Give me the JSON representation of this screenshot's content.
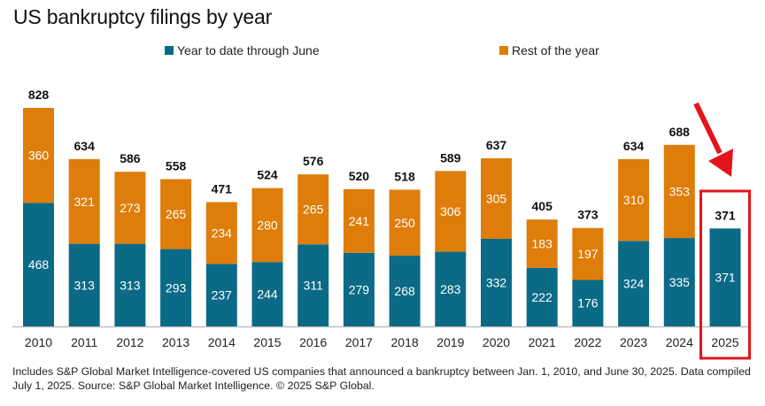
{
  "chart_data": {
    "type": "bar",
    "stacked": true,
    "title": "US bankruptcy filings by year",
    "xlabel": "",
    "ylabel": "",
    "categories": [
      "2010",
      "2011",
      "2012",
      "2013",
      "2014",
      "2015",
      "2016",
      "2017",
      "2018",
      "2019",
      "2020",
      "2021",
      "2022",
      "2023",
      "2024",
      "2025"
    ],
    "series": [
      {
        "name": "Year to date through June",
        "color": "#0b6a86",
        "values": [
          468,
          313,
          313,
          293,
          237,
          244,
          311,
          279,
          268,
          283,
          332,
          222,
          176,
          324,
          335,
          371
        ]
      },
      {
        "name": "Rest of the year",
        "color": "#de7d0a",
        "values": [
          360,
          321,
          273,
          265,
          234,
          280,
          265,
          241,
          250,
          306,
          305,
          183,
          197,
          310,
          353,
          null
        ]
      }
    ],
    "totals": [
      828,
      634,
      586,
      558,
      471,
      524,
      576,
      520,
      518,
      589,
      637,
      405,
      373,
      634,
      688,
      371
    ],
    "ylim": [
      0,
      828
    ],
    "grid": false,
    "legend_position": "top",
    "annotation": {
      "type": "highlight-box-with-arrow",
      "target_category": "2025",
      "color": "#e3141c"
    }
  },
  "footnote": "Includes S&P Global Market Intelligence-covered US companies that announced a bankruptcy between Jan. 1, 2010, and June 30, 2025. Data compiled July 1, 2025.  Source: S&P Global Market Intelligence. © 2025 S&P Global."
}
